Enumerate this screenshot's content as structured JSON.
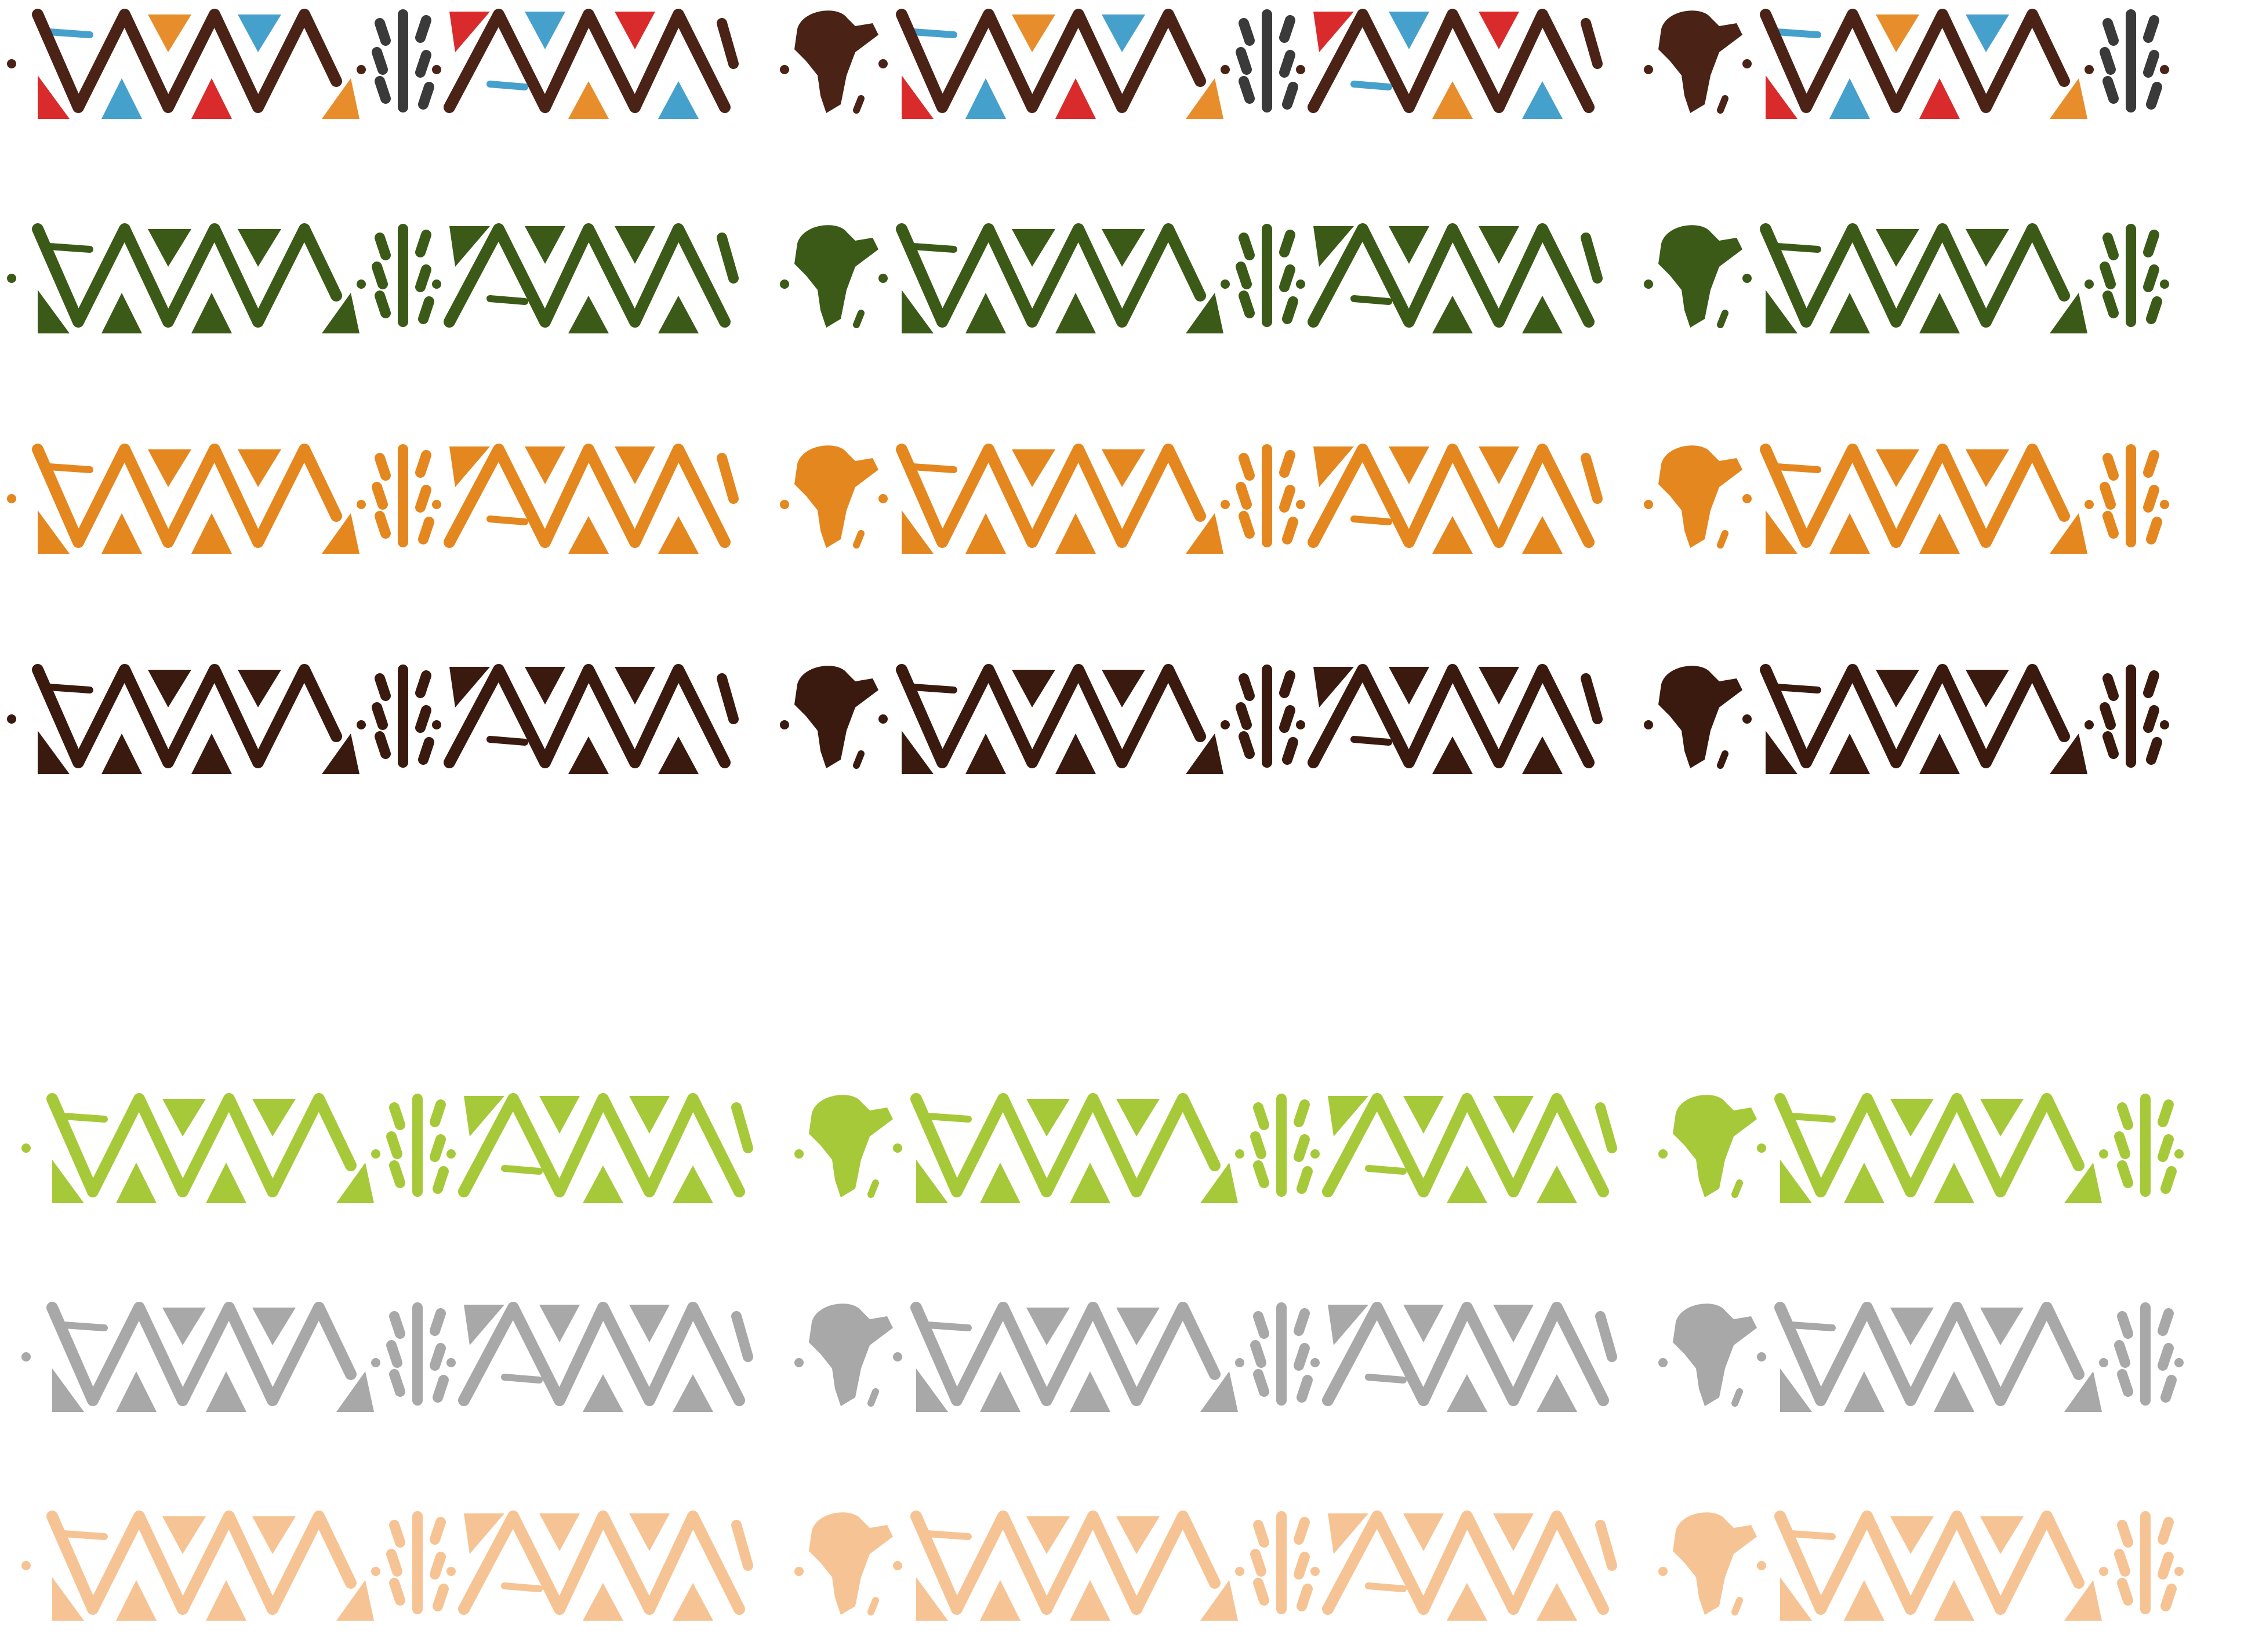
{
  "background": "#ffffff",
  "borders": [
    {
      "name": "multicolor",
      "color": "#4a2316",
      "accents": [
        "#d92b2b",
        "#46a0cc",
        "#e88d2c",
        "#3a3a3a"
      ],
      "visible": true
    },
    {
      "name": "dark-green",
      "color": "#3b5a18",
      "visible": true
    },
    {
      "name": "orange",
      "color": "#e4871f",
      "visible": true
    },
    {
      "name": "dark-brown",
      "color": "#3a1a0f",
      "visible": true
    },
    {
      "name": "white",
      "color": "#ffffff",
      "visible": true
    },
    {
      "name": "lime-green",
      "color": "#a6c93a",
      "visible": true
    },
    {
      "name": "gray",
      "color": "#a8a8a8",
      "visible": true
    },
    {
      "name": "peach",
      "color": "#f6c494",
      "visible": true
    }
  ],
  "motifs": {
    "sequence": [
      "zigzag-a",
      "sticks",
      "zigzag-b",
      "africa-map",
      "zigzag-a",
      "sticks",
      "zigzag-b",
      "africa-map",
      "zigzag-a",
      "sticks"
    ],
    "icon_names": [
      "zigzag-pattern-icon",
      "leaf-sticks-icon",
      "africa-map-icon",
      "dot-icon"
    ]
  }
}
